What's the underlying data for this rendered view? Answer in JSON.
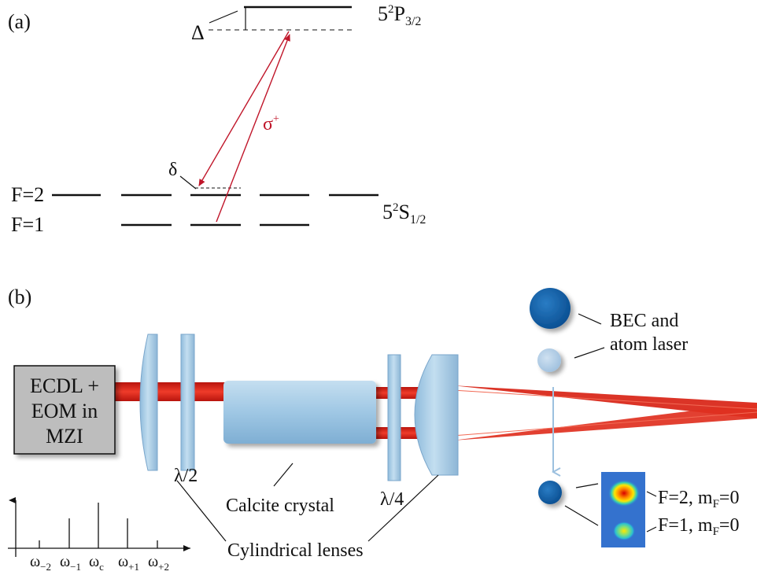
{
  "panel_a": {
    "tag": "(a)",
    "excited_state": {
      "main": "5",
      "sup": "2",
      "letter": "P",
      "sub": "3/2"
    },
    "ground_state": {
      "main": "5",
      "sup": "2",
      "letter": "S",
      "sub": "1/2"
    },
    "detuning_label": "Δ",
    "two_photon_label": "δ",
    "transition_label": "σ",
    "transition_sup": "+",
    "level_f2": "F=2",
    "level_f1": "F=1"
  },
  "panel_b": {
    "tag": "(b)",
    "laser_box": {
      "line1": "ECDL +",
      "line2": "EOM in",
      "line3": "MZI"
    },
    "half_wave": "λ/2",
    "quarter_wave": "λ/4",
    "crystal": "Calcite crystal",
    "lenses": "Cylindrical lenses",
    "bec_line1": "BEC and",
    "bec_line2": "atom laser",
    "state_f2": {
      "text": "F=2, m",
      "sub": "F",
      "tail": "=0"
    },
    "state_f1": {
      "text": "F=1, m",
      "sub": "F",
      "tail": "=0"
    },
    "spectrum_ticks": [
      {
        "base": "ω",
        "sub": "−2"
      },
      {
        "base": "ω",
        "sub": "−1"
      },
      {
        "base": "ω",
        "sub": "c"
      },
      {
        "base": "ω",
        "sub": "+1"
      },
      {
        "base": "ω",
        "sub": "+2"
      }
    ]
  },
  "colors": {
    "beam": "#d9291b",
    "optic": "#a9cde6",
    "bec": "#0f5ea8",
    "transition": "#c0162a",
    "box": "#bdbdbd"
  }
}
